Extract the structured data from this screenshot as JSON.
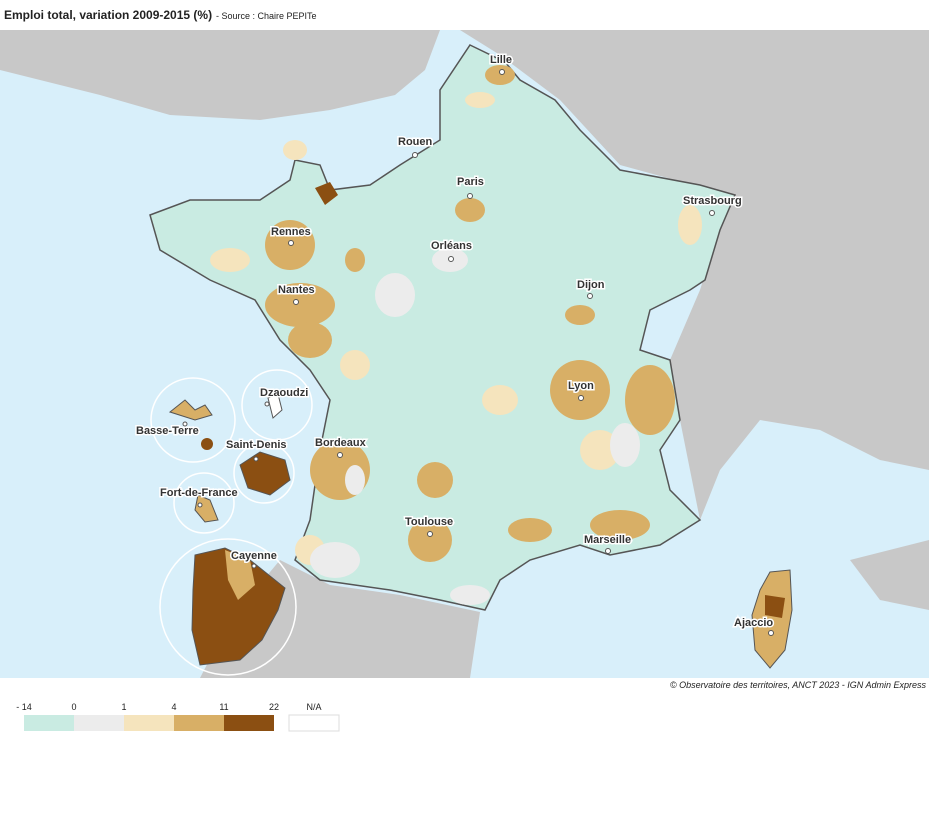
{
  "header": {
    "title": "Emploi total, variation 2009-2015 (%)",
    "source": "- Source : Chaire PEPITe"
  },
  "map": {
    "cities": [
      "Lille",
      "Rouen",
      "Paris",
      "Strasbourg",
      "Rennes",
      "Orléans",
      "Dijon",
      "Nantes",
      "Lyon",
      "Dzaoudzi",
      "Basse-Terre",
      "Saint-Denis",
      "Bordeaux",
      "Fort-de-France",
      "Toulouse",
      "Marseille",
      "Cayenne",
      "Ajaccio"
    ],
    "credit": "© Observatoire des territoires, ANCT 2023 - IGN Admin Express"
  },
  "legend": {
    "breaks": [
      {
        "value": -14,
        "label": "- 14"
      },
      0,
      1,
      4,
      11,
      22
    ],
    "colors": [
      "#c9ebe2",
      "#ececec",
      "#f5e4bd",
      "#d8af66",
      "#8b4f12"
    ],
    "na_label": "N/A",
    "na_color": "#ffffff"
  }
}
